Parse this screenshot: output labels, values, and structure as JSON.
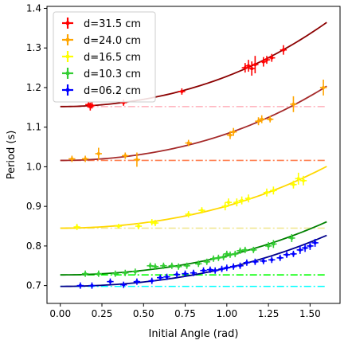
{
  "chart_data": {
    "type": "scatter",
    "xlabel": "Initial Angle (rad)",
    "ylabel": "Period (s)",
    "xlim": [
      -0.08,
      1.68
    ],
    "ylim": [
      0.655,
      1.405
    ],
    "x_ticks": [
      "0.00",
      "0.25",
      "0.50",
      "0.75",
      "1.00",
      "1.25",
      "1.50"
    ],
    "y_ticks": [
      "0.7",
      "0.8",
      "0.9",
      "1.0",
      "1.1",
      "1.2",
      "1.3",
      "1.4"
    ],
    "grid": false,
    "legend_position": "top-left",
    "series": [
      {
        "name": "d=31.5 cm",
        "color": "#ff0000",
        "fit_color": "#8b0000",
        "baseline_color": "#ffb6c1",
        "T0": 1.152,
        "fit_x_range": [
          0.0,
          1.6
        ],
        "points": [
          {
            "x": 0.17,
            "y": 1.157,
            "ye": 0.008,
            "xe": 0.02
          },
          {
            "x": 0.18,
            "y": 1.152,
            "ye": 0.01,
            "xe": 0.02
          },
          {
            "x": 0.19,
            "y": 1.155,
            "ye": 0.008,
            "xe": 0.02
          },
          {
            "x": 0.38,
            "y": 1.162,
            "ye": 0.008,
            "xe": 0.02
          },
          {
            "x": 0.73,
            "y": 1.19,
            "ye": 0.008,
            "xe": 0.02
          },
          {
            "x": 1.11,
            "y": 1.25,
            "ye": 0.012,
            "xe": 0.02
          },
          {
            "x": 1.13,
            "y": 1.255,
            "ye": 0.015,
            "xe": 0.02
          },
          {
            "x": 1.15,
            "y": 1.248,
            "ye": 0.018,
            "xe": 0.02
          },
          {
            "x": 1.17,
            "y": 1.258,
            "ye": 0.022,
            "xe": 0.02
          },
          {
            "x": 1.22,
            "y": 1.265,
            "ye": 0.012,
            "xe": 0.02
          },
          {
            "x": 1.24,
            "y": 1.27,
            "ye": 0.01,
            "xe": 0.02
          },
          {
            "x": 1.27,
            "y": 1.275,
            "ye": 0.01,
            "xe": 0.02
          },
          {
            "x": 1.34,
            "y": 1.295,
            "ye": 0.012,
            "xe": 0.02
          }
        ]
      },
      {
        "name": "d=24.0 cm",
        "color": "#ffa500",
        "fit_color": "#a52a2a",
        "baseline_color": "#ff7f50",
        "T0": 1.016,
        "fit_x_range": [
          0.0,
          1.6
        ],
        "points": [
          {
            "x": 0.07,
            "y": 1.02,
            "ye": 0.008,
            "xe": 0.02
          },
          {
            "x": 0.15,
            "y": 1.02,
            "ye": 0.008,
            "xe": 0.02
          },
          {
            "x": 0.23,
            "y": 1.033,
            "ye": 0.015,
            "xe": 0.02
          },
          {
            "x": 0.39,
            "y": 1.028,
            "ye": 0.008,
            "xe": 0.02
          },
          {
            "x": 0.46,
            "y": 1.018,
            "ye": 0.018,
            "xe": 0.02
          },
          {
            "x": 0.77,
            "y": 1.06,
            "ye": 0.008,
            "xe": 0.02
          },
          {
            "x": 1.02,
            "y": 1.08,
            "ye": 0.01,
            "xe": 0.02
          },
          {
            "x": 1.04,
            "y": 1.088,
            "ye": 0.01,
            "xe": 0.02
          },
          {
            "x": 1.19,
            "y": 1.115,
            "ye": 0.01,
            "xe": 0.02
          },
          {
            "x": 1.21,
            "y": 1.12,
            "ye": 0.01,
            "xe": 0.02
          },
          {
            "x": 1.26,
            "y": 1.12,
            "ye": 0.008,
            "xe": 0.02
          },
          {
            "x": 1.4,
            "y": 1.158,
            "ye": 0.02,
            "xe": 0.02
          },
          {
            "x": 1.58,
            "y": 1.2,
            "ye": 0.02,
            "xe": 0.02
          }
        ]
      },
      {
        "name": "d=16.5 cm",
        "color": "#ffff00",
        "fit_color": "#ffd700",
        "baseline_color": "#f0e68c",
        "T0": 0.845,
        "fit_x_range": [
          0.0,
          1.6
        ],
        "points": [
          {
            "x": 0.1,
            "y": 0.848,
            "ye": 0.008,
            "xe": 0.02
          },
          {
            "x": 0.35,
            "y": 0.85,
            "ye": 0.006,
            "xe": 0.02
          },
          {
            "x": 0.47,
            "y": 0.85,
            "ye": 0.008,
            "xe": 0.02
          },
          {
            "x": 0.55,
            "y": 0.86,
            "ye": 0.008,
            "xe": 0.02
          },
          {
            "x": 0.57,
            "y": 0.858,
            "ye": 0.008,
            "xe": 0.02
          },
          {
            "x": 0.77,
            "y": 0.88,
            "ye": 0.008,
            "xe": 0.02
          },
          {
            "x": 0.85,
            "y": 0.89,
            "ye": 0.008,
            "xe": 0.02
          },
          {
            "x": 0.99,
            "y": 0.9,
            "ye": 0.01,
            "xe": 0.02
          },
          {
            "x": 1.01,
            "y": 0.91,
            "ye": 0.01,
            "xe": 0.02
          },
          {
            "x": 1.06,
            "y": 0.91,
            "ye": 0.01,
            "xe": 0.02
          },
          {
            "x": 1.09,
            "y": 0.915,
            "ye": 0.01,
            "xe": 0.02
          },
          {
            "x": 1.13,
            "y": 0.92,
            "ye": 0.01,
            "xe": 0.02
          },
          {
            "x": 1.24,
            "y": 0.935,
            "ye": 0.01,
            "xe": 0.02
          },
          {
            "x": 1.28,
            "y": 0.94,
            "ye": 0.01,
            "xe": 0.02
          },
          {
            "x": 1.4,
            "y": 0.955,
            "ye": 0.01,
            "xe": 0.02
          },
          {
            "x": 1.43,
            "y": 0.97,
            "ye": 0.015,
            "xe": 0.02
          },
          {
            "x": 1.46,
            "y": 0.965,
            "ye": 0.012,
            "xe": 0.02
          }
        ]
      },
      {
        "name": "d=10.3 cm",
        "color": "#32cd32",
        "fit_color": "#008000",
        "baseline_color": "#00ff00",
        "T0": 0.727,
        "fit_x_range": [
          0.0,
          1.6
        ],
        "points": [
          {
            "x": 0.15,
            "y": 0.73,
            "ye": 0.008,
            "xe": 0.02
          },
          {
            "x": 0.23,
            "y": 0.73,
            "ye": 0.008,
            "xe": 0.02
          },
          {
            "x": 0.33,
            "y": 0.73,
            "ye": 0.008,
            "xe": 0.02
          },
          {
            "x": 0.39,
            "y": 0.732,
            "ye": 0.008,
            "xe": 0.02
          },
          {
            "x": 0.45,
            "y": 0.735,
            "ye": 0.008,
            "xe": 0.02
          },
          {
            "x": 0.54,
            "y": 0.75,
            "ye": 0.008,
            "xe": 0.02
          },
          {
            "x": 0.57,
            "y": 0.748,
            "ye": 0.008,
            "xe": 0.02
          },
          {
            "x": 0.62,
            "y": 0.75,
            "ye": 0.008,
            "xe": 0.02
          },
          {
            "x": 0.67,
            "y": 0.75,
            "ye": 0.008,
            "xe": 0.02
          },
          {
            "x": 0.71,
            "y": 0.748,
            "ye": 0.008,
            "xe": 0.02
          },
          {
            "x": 0.76,
            "y": 0.75,
            "ye": 0.008,
            "xe": 0.02
          },
          {
            "x": 0.83,
            "y": 0.755,
            "ye": 0.008,
            "xe": 0.02
          },
          {
            "x": 0.88,
            "y": 0.76,
            "ye": 0.008,
            "xe": 0.02
          },
          {
            "x": 0.92,
            "y": 0.768,
            "ye": 0.008,
            "xe": 0.02
          },
          {
            "x": 0.95,
            "y": 0.77,
            "ye": 0.008,
            "xe": 0.02
          },
          {
            "x": 0.98,
            "y": 0.772,
            "ye": 0.008,
            "xe": 0.02
          },
          {
            "x": 1.0,
            "y": 0.78,
            "ye": 0.008,
            "xe": 0.02
          },
          {
            "x": 1.02,
            "y": 0.778,
            "ye": 0.008,
            "xe": 0.02
          },
          {
            "x": 1.05,
            "y": 0.78,
            "ye": 0.008,
            "xe": 0.02
          },
          {
            "x": 1.08,
            "y": 0.788,
            "ye": 0.008,
            "xe": 0.02
          },
          {
            "x": 1.11,
            "y": 0.79,
            "ye": 0.008,
            "xe": 0.02
          },
          {
            "x": 1.16,
            "y": 0.79,
            "ye": 0.008,
            "xe": 0.02
          },
          {
            "x": 1.25,
            "y": 0.8,
            "ye": 0.01,
            "xe": 0.02
          },
          {
            "x": 1.28,
            "y": 0.805,
            "ye": 0.01,
            "xe": 0.02
          },
          {
            "x": 1.39,
            "y": 0.82,
            "ye": 0.01,
            "xe": 0.02
          }
        ]
      },
      {
        "name": "d=06.2 cm",
        "color": "#0000ff",
        "fit_color": "#00008b",
        "baseline_color": "#00ffff",
        "T0": 0.698,
        "fit_x_range": [
          0.0,
          1.6
        ],
        "points": [
          {
            "x": 0.12,
            "y": 0.7,
            "ye": 0.008,
            "xe": 0.02
          },
          {
            "x": 0.19,
            "y": 0.7,
            "ye": 0.008,
            "xe": 0.02
          },
          {
            "x": 0.3,
            "y": 0.71,
            "ye": 0.008,
            "xe": 0.02
          },
          {
            "x": 0.38,
            "y": 0.702,
            "ye": 0.008,
            "xe": 0.02
          },
          {
            "x": 0.46,
            "y": 0.71,
            "ye": 0.008,
            "xe": 0.02
          },
          {
            "x": 0.55,
            "y": 0.712,
            "ye": 0.008,
            "xe": 0.02
          },
          {
            "x": 0.6,
            "y": 0.72,
            "ye": 0.008,
            "xe": 0.02
          },
          {
            "x": 0.64,
            "y": 0.722,
            "ye": 0.008,
            "xe": 0.02
          },
          {
            "x": 0.7,
            "y": 0.728,
            "ye": 0.008,
            "xe": 0.02
          },
          {
            "x": 0.75,
            "y": 0.73,
            "ye": 0.008,
            "xe": 0.02
          },
          {
            "x": 0.8,
            "y": 0.732,
            "ye": 0.008,
            "xe": 0.02
          },
          {
            "x": 0.86,
            "y": 0.738,
            "ye": 0.008,
            "xe": 0.02
          },
          {
            "x": 0.9,
            "y": 0.74,
            "ye": 0.008,
            "xe": 0.02
          },
          {
            "x": 0.93,
            "y": 0.738,
            "ye": 0.008,
            "xe": 0.02
          },
          {
            "x": 0.97,
            "y": 0.742,
            "ye": 0.008,
            "xe": 0.02
          },
          {
            "x": 1.0,
            "y": 0.745,
            "ye": 0.008,
            "xe": 0.02
          },
          {
            "x": 1.04,
            "y": 0.748,
            "ye": 0.008,
            "xe": 0.02
          },
          {
            "x": 1.08,
            "y": 0.75,
            "ye": 0.008,
            "xe": 0.02
          },
          {
            "x": 1.12,
            "y": 0.758,
            "ye": 0.008,
            "xe": 0.02
          },
          {
            "x": 1.17,
            "y": 0.76,
            "ye": 0.008,
            "xe": 0.02
          },
          {
            "x": 1.22,
            "y": 0.762,
            "ye": 0.008,
            "xe": 0.02
          },
          {
            "x": 1.27,
            "y": 0.765,
            "ye": 0.008,
            "xe": 0.02
          },
          {
            "x": 1.32,
            "y": 0.77,
            "ye": 0.008,
            "xe": 0.02
          },
          {
            "x": 1.36,
            "y": 0.778,
            "ye": 0.008,
            "xe": 0.02
          },
          {
            "x": 1.4,
            "y": 0.78,
            "ye": 0.008,
            "xe": 0.02
          },
          {
            "x": 1.44,
            "y": 0.79,
            "ye": 0.01,
            "xe": 0.02
          },
          {
            "x": 1.47,
            "y": 0.795,
            "ye": 0.01,
            "xe": 0.02
          },
          {
            "x": 1.5,
            "y": 0.8,
            "ye": 0.01,
            "xe": 0.02
          },
          {
            "x": 1.53,
            "y": 0.808,
            "ye": 0.01,
            "xe": 0.02
          }
        ]
      }
    ]
  }
}
